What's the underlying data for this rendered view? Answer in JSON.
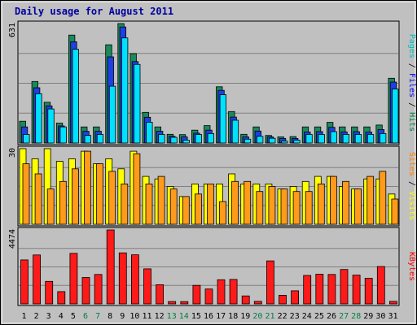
{
  "chart_data": {
    "type": "bar",
    "title": "Daily usage for August 2011",
    "days": [
      {
        "label": "1",
        "weekend": false
      },
      {
        "label": "2",
        "weekend": false
      },
      {
        "label": "3",
        "weekend": false
      },
      {
        "label": "4",
        "weekend": false
      },
      {
        "label": "5",
        "weekend": false
      },
      {
        "label": "6",
        "weekend": true
      },
      {
        "label": "7",
        "weekend": true
      },
      {
        "label": "8",
        "weekend": false
      },
      {
        "label": "9",
        "weekend": false
      },
      {
        "label": "10",
        "weekend": false
      },
      {
        "label": "11",
        "weekend": false
      },
      {
        "label": "12",
        "weekend": false
      },
      {
        "label": "13",
        "weekend": true
      },
      {
        "label": "14",
        "weekend": true
      },
      {
        "label": "15",
        "weekend": false
      },
      {
        "label": "16",
        "weekend": false
      },
      {
        "label": "17",
        "weekend": false
      },
      {
        "label": "18",
        "weekend": false
      },
      {
        "label": "19",
        "weekend": false
      },
      {
        "label": "20",
        "weekend": true
      },
      {
        "label": "21",
        "weekend": true
      },
      {
        "label": "22",
        "weekend": false
      },
      {
        "label": "23",
        "weekend": false
      },
      {
        "label": "24",
        "weekend": false
      },
      {
        "label": "25",
        "weekend": false
      },
      {
        "label": "26",
        "weekend": false
      },
      {
        "label": "27",
        "weekend": true
      },
      {
        "label": "28",
        "weekend": true
      },
      {
        "label": "29",
        "weekend": false
      },
      {
        "label": "30",
        "weekend": false
      },
      {
        "label": "31",
        "weekend": false
      }
    ],
    "panels": [
      {
        "id": "hits",
        "ymax_label": "631",
        "ymax": 631,
        "legend": [
          {
            "text": "Pages",
            "color": "#00c0c0"
          },
          {
            "text": " / ",
            "color": "#000000"
          },
          {
            "text": "Files",
            "color": "#0000ff"
          },
          {
            "text": " / ",
            "color": "#000000"
          },
          {
            "text": "Hits",
            "color": "#008040"
          }
        ],
        "series": [
          {
            "name": "Hits",
            "color": "#1a8a5a",
            "values": [
              115,
              325,
              215,
              105,
              570,
              85,
              85,
              519,
              631,
              472,
              162,
              85,
              46,
              44,
              68,
              92,
              297,
              166,
              46,
              85,
              40,
              32,
              34,
              85,
              85,
              109,
              85,
              85,
              85,
              95,
              342
            ]
          },
          {
            "name": "Files",
            "color": "#1e40e0",
            "values": [
              85,
              292,
              196,
              90,
              535,
              62,
              62,
              455,
              613,
              430,
              136,
              62,
              35,
              32,
              52,
              68,
              278,
              137,
              32,
              63,
              32,
              24,
              24,
              58,
              60,
              83,
              59,
              60,
              58,
              71,
              322
            ]
          },
          {
            "name": "Pages",
            "color": "#00e0ff",
            "values": [
              45,
              260,
              180,
              85,
              495,
              40,
              45,
              300,
              555,
              415,
              110,
              45,
              30,
              15,
              45,
              50,
              255,
              120,
              20,
              35,
              25,
              10,
              15,
              45,
              45,
              60,
              45,
              45,
              45,
              50,
              285
            ]
          }
        ]
      },
      {
        "id": "visits",
        "ymax_label": "30",
        "ymax": 30,
        "legend": [
          {
            "text": "Sites",
            "color": "#ff8000"
          },
          {
            "text": " / ",
            "color": "#000000"
          },
          {
            "text": "Visits",
            "color": "#ffff00"
          }
        ],
        "series": [
          {
            "name": "Visits",
            "color": "#ffff00",
            "values": [
              30,
              26,
              30,
              25,
              26,
              29,
              24,
              26,
              22,
              29,
              19,
              18,
              15,
              11,
              16,
              16,
              16,
              20,
              16,
              16,
              16,
              14,
              15,
              17,
              19,
              19,
              15,
              14,
              18,
              18,
              12
            ]
          },
          {
            "name": "Sites",
            "color": "#ff9a1a",
            "values": [
              24,
              20,
              14,
              17,
              22,
              29,
              24,
              21,
              16,
              28,
              16,
              19,
              14,
              11,
              12,
              16,
              9,
              17,
              17,
              13,
              15,
              14,
              13,
              13,
              16,
              19,
              17,
              14,
              19,
              21,
              10
            ]
          }
        ]
      },
      {
        "id": "kbytes",
        "ymax_label": "4474",
        "ymax": 4474,
        "legend": [
          {
            "text": "KBytes",
            "color": "#ff0000"
          }
        ],
        "series": [
          {
            "name": "KBytes",
            "color": "#ff1a1a",
            "values": [
              2660,
              2960,
              1360,
              740,
              3060,
              1600,
              1780,
              4474,
              3090,
              2970,
              2120,
              1160,
              143,
              140,
              1120,
              900,
              1460,
              1480,
              480,
              150,
              2600,
              520,
              790,
              1720,
              1800,
              1780,
              2080,
              1740,
              1550,
              2260,
              150
            ]
          }
        ]
      }
    ]
  }
}
